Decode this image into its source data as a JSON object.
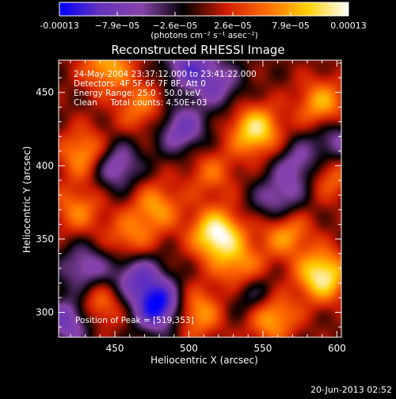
{
  "colorbar": {
    "tick_labels": [
      "-0.00013",
      "−7.9e−05",
      "−2.6e−05",
      "2.6e−05",
      "7.9e−05",
      "0.00013"
    ],
    "unit_label": "(photons cm⁻² s⁻¹ asec⁻²)"
  },
  "chart_data": {
    "type": "heatmap",
    "title": "Reconstructed RHESSI Image",
    "xlabel": "Heliocentric X (arcsec)",
    "ylabel": "Heliocentric Y (arcsec)",
    "xlim": [
      412,
      603
    ],
    "ylim": [
      283,
      472
    ],
    "x_ticks": [
      450,
      500,
      550,
      600
    ],
    "y_ticks": [
      300,
      350,
      400,
      450
    ],
    "value_range": [
      -0.00013,
      0.00013
    ],
    "colormap": [
      "#0000ff",
      "#6633bb",
      "#8844aa",
      "#000000",
      "#cc1a00",
      "#ff6a00",
      "#ffd000",
      "#ffffff"
    ],
    "annotations": [
      "24-May-2004 23:37:12.000 to 23:41:22.000",
      "Detectors: 4F 5F 6F 7F 8F, Att 0",
      "Energy Range: 25.0 - 50.0 keV",
      "Clean     Total counts: 4.50E+03"
    ],
    "peak_label": "Position of Peak = [519,353]",
    "peak": [
      519,
      353
    ],
    "sources": [
      {
        "x": 519,
        "y": 353,
        "value": 0.00013
      },
      {
        "x": 545,
        "y": 424,
        "value": 0.00011
      },
      {
        "x": 590,
        "y": 325,
        "value": 0.00012
      },
      {
        "x": 555,
        "y": 298,
        "value": 0.0001
      },
      {
        "x": 445,
        "y": 468,
        "value": 8e-05
      },
      {
        "x": 590,
        "y": 442,
        "value": 8e-05
      },
      {
        "x": 468,
        "y": 440,
        "value": 6e-05
      },
      {
        "x": 430,
        "y": 408,
        "value": 8e-05
      },
      {
        "x": 478,
        "y": 372,
        "value": 7e-05
      },
      {
        "x": 565,
        "y": 355,
        "value": 8e-05
      },
      {
        "x": 535,
        "y": 330,
        "value": 7e-05
      },
      {
        "x": 438,
        "y": 305,
        "value": 7e-05
      },
      {
        "x": 505,
        "y": 300,
        "value": 8e-05
      },
      {
        "x": 460,
        "y": 350,
        "value": 6e-05
      },
      {
        "x": 595,
        "y": 395,
        "value": 7e-05
      },
      {
        "x": 515,
        "y": 395,
        "value": 5e-05
      },
      {
        "x": 425,
        "y": 370,
        "value": 6e-05
      },
      {
        "x": 480,
        "y": 304,
        "value": -0.00013
      },
      {
        "x": 420,
        "y": 295,
        "value": -9e-05
      },
      {
        "x": 495,
        "y": 425,
        "value": -8e-05
      },
      {
        "x": 450,
        "y": 400,
        "value": -8e-05
      },
      {
        "x": 575,
        "y": 400,
        "value": -7e-05
      },
      {
        "x": 465,
        "y": 325,
        "value": -8e-05
      },
      {
        "x": 545,
        "y": 310,
        "value": -7e-05
      },
      {
        "x": 430,
        "y": 330,
        "value": -7e-05
      },
      {
        "x": 500,
        "y": 468,
        "value": -8e-05
      },
      {
        "x": 600,
        "y": 415,
        "value": -7e-05
      },
      {
        "x": 560,
        "y": 375,
        "value": -7e-05
      },
      {
        "x": 520,
        "y": 455,
        "value": -6e-05
      }
    ]
  },
  "footer": {
    "timestamp": "20-Jun-2013 02:52"
  }
}
